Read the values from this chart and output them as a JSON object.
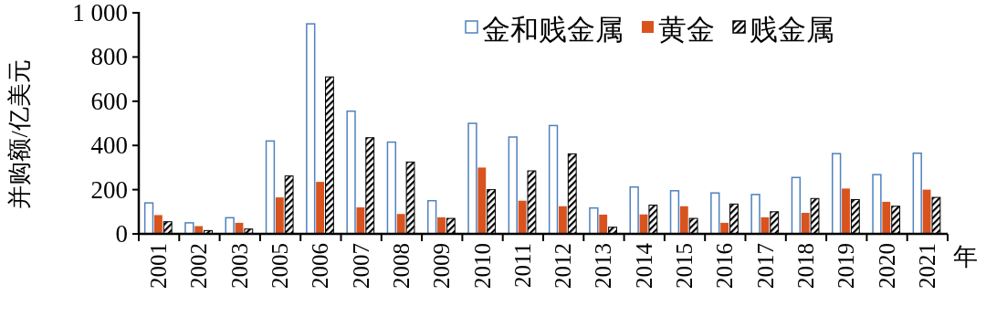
{
  "chart_data": {
    "type": "bar",
    "xlabel": "年",
    "ylabel": "并购额/亿美元",
    "categories": [
      "2001",
      "2002",
      "2003",
      "2005",
      "2006",
      "2007",
      "2008",
      "2009",
      "2010",
      "2011",
      "2012",
      "2013",
      "2014",
      "2015",
      "2016",
      "2017",
      "2018",
      "2019",
      "2020",
      "2021"
    ],
    "series": [
      {
        "name": "金和贱金属",
        "color": "#4f81bd",
        "values": [
          140,
          50,
          73,
          420,
          950,
          555,
          415,
          150,
          500,
          438,
          490,
          117,
          212,
          195,
          185,
          178,
          255,
          363,
          268,
          365
        ]
      },
      {
        "name": "黄金",
        "color": "#d9531e",
        "values": [
          85,
          35,
          50,
          165,
          235,
          120,
          90,
          75,
          300,
          150,
          125,
          87,
          88,
          125,
          50,
          75,
          95,
          205,
          145,
          200
        ]
      },
      {
        "name": "贱金属",
        "color": "#000000",
        "values": [
          55,
          15,
          22,
          262,
          710,
          435,
          325,
          70,
          200,
          285,
          362,
          30,
          130,
          70,
          135,
          100,
          160,
          155,
          125,
          165
        ]
      }
    ],
    "ylim": [
      0,
      1000
    ],
    "yticks": [
      0,
      200,
      400,
      600,
      800,
      {
        "value": 1000,
        "label": "1 000"
      }
    ],
    "grid": false,
    "legend": "top right"
  }
}
